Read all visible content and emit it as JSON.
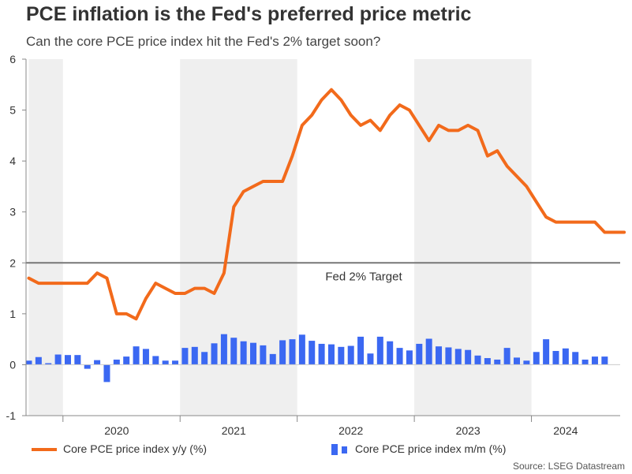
{
  "chart_data": {
    "type": "line+bar",
    "title": "PCE inflation is the Fed's preferred price metric",
    "subtitle": "Can the core PCE price index hit the Fed's 2% target soon?",
    "source": "Source: LSEG Datastream",
    "ylim": [
      -1,
      6
    ],
    "yticks": [
      -1,
      0,
      1,
      2,
      3,
      4,
      5,
      6
    ],
    "xlim_month_index": [
      0,
      63
    ],
    "year_labels": [
      {
        "label": "2020",
        "center_month": 9
      },
      {
        "label": "2021",
        "center_month": 21
      },
      {
        "label": "2022",
        "center_month": 33
      },
      {
        "label": "2023",
        "center_month": 45
      },
      {
        "label": "2024",
        "center_month": 55
      }
    ],
    "shaded_month_ranges": [
      [
        0,
        3.5
      ],
      [
        15.5,
        27.5
      ],
      [
        39.5,
        51.5
      ]
    ],
    "year_separator_months": [
      3.5,
      15.5,
      27.5,
      39.5,
      51.5
    ],
    "reference_line": {
      "value": 2,
      "label": "Fed 2% Target",
      "color": "#777777"
    },
    "series": [
      {
        "name": "Core PCE price index y/y (%)",
        "type": "line",
        "color": "#f26a1b",
        "values": [
          1.7,
          1.6,
          1.6,
          1.6,
          1.6,
          1.6,
          1.6,
          1.8,
          1.7,
          1.0,
          1.0,
          0.9,
          1.3,
          1.6,
          1.5,
          1.4,
          1.4,
          1.5,
          1.5,
          1.4,
          1.8,
          3.1,
          3.4,
          3.5,
          3.6,
          3.6,
          3.6,
          4.1,
          4.7,
          4.9,
          5.2,
          5.4,
          5.2,
          4.9,
          4.7,
          4.8,
          4.6,
          4.9,
          5.1,
          5.0,
          4.7,
          4.4,
          4.7,
          4.6,
          4.6,
          4.7,
          4.6,
          4.1,
          4.2,
          3.9,
          3.7,
          3.5,
          3.2,
          2.9,
          2.8,
          2.8,
          2.8,
          2.8,
          2.8,
          2.6,
          2.6,
          2.6
        ]
      },
      {
        "name": "Core PCE price index m/m (%)",
        "type": "bar",
        "color": "#3b68f2",
        "values": [
          0.08,
          0.15,
          0.03,
          0.2,
          0.19,
          0.19,
          -0.08,
          0.09,
          -0.34,
          0.1,
          0.16,
          0.36,
          0.31,
          0.17,
          0.08,
          0.08,
          0.33,
          0.35,
          0.25,
          0.42,
          0.6,
          0.53,
          0.46,
          0.43,
          0.38,
          0.21,
          0.48,
          0.5,
          0.59,
          0.47,
          0.41,
          0.4,
          0.35,
          0.37,
          0.55,
          0.22,
          0.55,
          0.46,
          0.33,
          0.28,
          0.41,
          0.51,
          0.36,
          0.34,
          0.31,
          0.29,
          0.18,
          0.13,
          0.1,
          0.33,
          0.14,
          0.08,
          0.25,
          0.5,
          0.27,
          0.32,
          0.25,
          0.1,
          0.16,
          0.16
        ]
      }
    ]
  }
}
